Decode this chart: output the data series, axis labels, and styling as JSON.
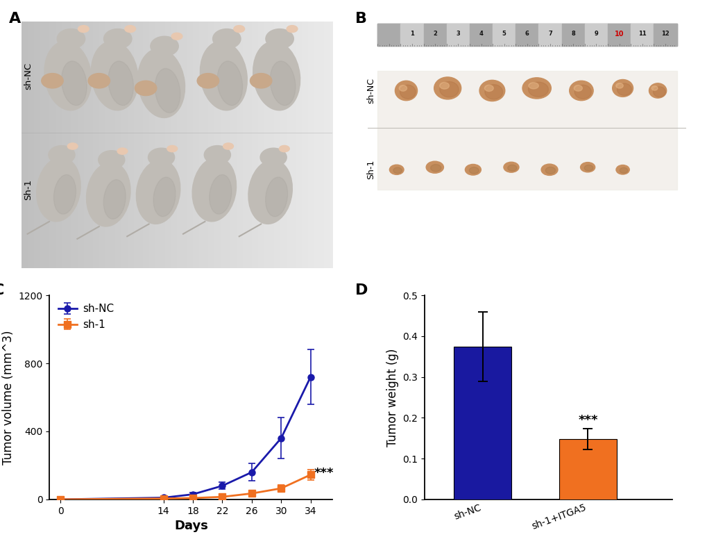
{
  "panel_labels": [
    "A",
    "B",
    "C",
    "D"
  ],
  "line_chart": {
    "days": [
      0,
      14,
      18,
      22,
      26,
      30,
      34
    ],
    "sh_NC_values": [
      0,
      10,
      30,
      80,
      160,
      360,
      720
    ],
    "sh_NC_errors": [
      0,
      5,
      10,
      20,
      50,
      120,
      160
    ],
    "sh1_values": [
      0,
      5,
      8,
      15,
      35,
      65,
      145
    ],
    "sh1_errors": [
      0,
      2,
      4,
      8,
      15,
      20,
      30
    ],
    "sh_NC_color": "#1a1aaa",
    "sh1_color": "#f07020",
    "ylabel": "Tumor volume (mm^3)",
    "xlabel": "Days",
    "ylim": [
      0,
      1200
    ],
    "yticks": [
      0,
      400,
      800,
      1200
    ],
    "xticks": [
      0,
      14,
      18,
      22,
      26,
      30,
      34
    ],
    "legend_sh_NC": "sh-NC",
    "legend_sh1": "sh-1",
    "sig_label": "***",
    "sig_x": 34.3,
    "sig_y": 155
  },
  "bar_chart": {
    "categories": [
      "sh-NC",
      "sh-1+ITGA5"
    ],
    "values": [
      0.375,
      0.148
    ],
    "errors": [
      0.085,
      0.025
    ],
    "colors": [
      "#1919a0",
      "#f07020"
    ],
    "ylabel": "Tumor weight (g)",
    "ylim": [
      0,
      0.5
    ],
    "yticks": [
      0.0,
      0.1,
      0.2,
      0.3,
      0.4,
      0.5
    ],
    "sig_label": "***",
    "sig_x": 1,
    "sig_y": 0.178
  },
  "photo_A": {
    "label_top": "sh-NC",
    "label_bottom": "Sh-1",
    "bg_color_top": "#d8d4ce",
    "bg_color_bottom": "#ccc8c2",
    "mouse_body_color": "#bfbbb5",
    "mouse_shadow_color": "#a8a49e"
  },
  "photo_B": {
    "label_top": "sh-NC",
    "label_bottom": "Sh-1",
    "bg_color": "#e0ddd8",
    "tumor_color_NC": "#c8956a",
    "tumor_color_sh1": "#c89060",
    "ruler_bg": "#808080"
  },
  "panel_label_fontsize": 16,
  "axis_label_fontsize": 12,
  "tick_fontsize": 10,
  "legend_fontsize": 11,
  "sig_fontsize": 13,
  "background_color": "#ffffff"
}
